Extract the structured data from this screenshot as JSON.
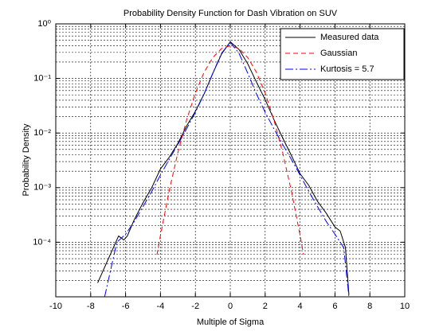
{
  "chart_data": {
    "type": "line",
    "title": "Probability Density Function for Dash Vibration on SUV",
    "x_label": "Multiple of Sigma",
    "y_label": "Probability Density",
    "xlim": [
      -10,
      10
    ],
    "xticks": [
      -10,
      -8,
      -6,
      -4,
      -2,
      0,
      2,
      4,
      6,
      8,
      10
    ],
    "ylim": [
      1e-05,
      1
    ],
    "ylog": true,
    "yticks": [
      {
        "value": 1,
        "label": "10⁰"
      },
      {
        "value": 0.1,
        "label": "10⁻¹"
      },
      {
        "value": 0.01,
        "label": "10⁻²"
      },
      {
        "value": 0.001,
        "label": "10⁻³"
      },
      {
        "value": 0.0001,
        "label": "10⁻⁴"
      }
    ],
    "grid": true,
    "yminor_grid": true,
    "legend": "top-right",
    "series": [
      {
        "name": "Measured data",
        "color": "#000000",
        "linestyle": "solid",
        "x": [
          -7.6,
          -6.4,
          -6.1,
          -5.9,
          -5.5,
          -5,
          -4.5,
          -4,
          -3.5,
          -3,
          -2.5,
          -2,
          -1.5,
          -1,
          -0.5,
          0,
          0.5,
          1,
          1.5,
          2,
          2.5,
          3,
          3.5,
          4,
          4.5,
          5,
          5.5,
          6,
          6.3,
          6.6,
          6.8
        ],
        "values": [
          1.8e-05,
          0.00013,
          0.00011,
          0.00013,
          0.00026,
          0.00053,
          0.001,
          0.0022,
          0.0036,
          0.0065,
          0.0135,
          0.025,
          0.052,
          0.124,
          0.28,
          0.47,
          0.34,
          0.186,
          0.086,
          0.041,
          0.0177,
          0.0082,
          0.0039,
          0.0018,
          0.0011,
          0.00056,
          0.00034,
          0.00019,
          0.00016,
          8e-05,
          1.1e-05
        ]
      },
      {
        "name": "Gaussian",
        "color": "#ff0000",
        "linestyle": "dashed",
        "x": [
          -4.2,
          -4,
          -3.5,
          -3,
          -2.5,
          -2,
          -1.5,
          -1,
          -0.5,
          0,
          0.5,
          1,
          1.5,
          2,
          2.5,
          3,
          3.5,
          4,
          4.2
        ],
        "values": [
          5.89e-05,
          0.000134,
          0.000873,
          0.00443,
          0.0175,
          0.054,
          0.1295,
          0.242,
          0.352,
          0.399,
          0.352,
          0.242,
          0.1295,
          0.054,
          0.0175,
          0.00443,
          0.000873,
          0.000134,
          5.89e-05
        ]
      },
      {
        "name": "Kurtosis = 5.7",
        "color": "#0000ff",
        "linestyle": "dashdot",
        "x": [
          -7.2,
          -6.5,
          -6,
          -5.5,
          -5,
          -4.5,
          -4,
          -3.5,
          -3,
          -2.5,
          -2,
          -1.5,
          -1,
          -0.5,
          0,
          0.5,
          1,
          1.5,
          2,
          2.5,
          3,
          3.5,
          4,
          4.5,
          5,
          5.5,
          6,
          6.5,
          6.8
        ],
        "values": [
          1e-05,
          0.0001,
          0.00014,
          0.00024,
          0.00045,
          0.00085,
          0.0017,
          0.0033,
          0.0062,
          0.012,
          0.024,
          0.052,
          0.125,
          0.29,
          0.46,
          0.29,
          0.125,
          0.052,
          0.024,
          0.012,
          0.0062,
          0.0033,
          0.0017,
          0.00085,
          0.00045,
          0.00024,
          0.00014,
          8e-05,
          1e-05
        ]
      }
    ]
  }
}
